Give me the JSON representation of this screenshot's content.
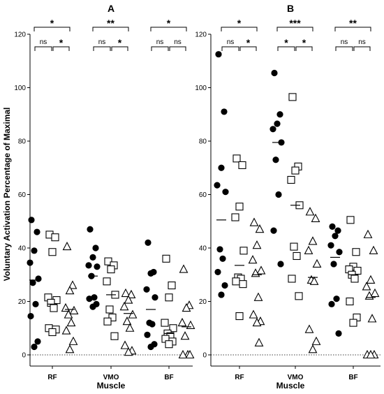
{
  "chart_data": [
    {
      "type": "scatter",
      "title": "A",
      "xlabel": "Muscle",
      "ylabel": "Voluntary Activation Percentage of Maximal",
      "ylim": [
        0,
        120
      ],
      "yticks": [
        "0",
        "20",
        "40",
        "60",
        "80",
        "100",
        "120"
      ],
      "categories": [
        "RF",
        "VMO",
        "BF"
      ],
      "reference_line": 0,
      "groups": [
        {
          "category": "RF",
          "series": [
            {
              "marker": "circle",
              "values": [
                50.5,
                46,
                39,
                34.5,
                28.5,
                27,
                19,
                14.5,
                5,
                3
              ],
              "mean": 28
            },
            {
              "marker": "square",
              "values": [
                45,
                44,
                38.5,
                21.5,
                20.5,
                19.5,
                17.5,
                10,
                9.5,
                8.5
              ],
              "mean": 19
            },
            {
              "marker": "triangle",
              "values": [
                40.5,
                26,
                24,
                17.5,
                16.5,
                15,
                12,
                9,
                5,
                2
              ],
              "mean": 17
            }
          ],
          "comparisons": [
            {
              "pair": "circle-triangle",
              "label": "*"
            },
            {
              "pair": "circle-square",
              "label": "ns"
            },
            {
              "pair": "square-triangle",
              "label": "*"
            }
          ]
        },
        {
          "category": "VMO",
          "series": [
            {
              "marker": "circle",
              "values": [
                47,
                40,
                36.5,
                33.5,
                33,
                29.5,
                21.5,
                21,
                19,
                18
              ],
              "mean": 29.5
            },
            {
              "marker": "square",
              "values": [
                35,
                33.5,
                32,
                27.5,
                22.5,
                17,
                14,
                12.5,
                7
              ],
              "mean": 22.5
            },
            {
              "marker": "triangle",
              "values": [
                23,
                22.5,
                20.5,
                18,
                15,
                12.5,
                10,
                3.5,
                1.5,
                1
              ],
              "mean": 15.5
            }
          ],
          "comparisons": [
            {
              "pair": "circle-triangle",
              "label": "**"
            },
            {
              "pair": "circle-square",
              "label": "ns"
            },
            {
              "pair": "square-triangle",
              "label": "*"
            }
          ]
        },
        {
          "category": "BF",
          "series": [
            {
              "marker": "circle",
              "values": [
                42,
                31,
                30.5,
                24.5,
                21.5,
                12,
                11.5,
                7.5,
                4,
                3
              ],
              "mean": 17
            },
            {
              "marker": "square",
              "values": [
                36,
                26,
                21.5,
                12,
                10,
                8,
                7,
                6,
                5,
                4
              ],
              "mean": 8
            },
            {
              "marker": "triangle",
              "values": [
                32,
                18.5,
                17.5,
                12,
                11,
                7,
                0,
                0,
                0
              ],
              "mean": 10.5
            }
          ],
          "comparisons": [
            {
              "pair": "circle-triangle",
              "label": "*"
            },
            {
              "pair": "circle-square",
              "label": "ns"
            },
            {
              "pair": "square-triangle",
              "label": "ns"
            }
          ]
        }
      ]
    },
    {
      "type": "scatter",
      "title": "B",
      "xlabel": "Muscle",
      "ylabel": "",
      "ylim": [
        0,
        120
      ],
      "yticks": [
        "0",
        "20",
        "40",
        "60",
        "80",
        "100",
        "120"
      ],
      "categories": [
        "RF",
        "VMO",
        "BF"
      ],
      "reference_line": 0,
      "groups": [
        {
          "category": "RF",
          "series": [
            {
              "marker": "circle",
              "values": [
                112.5,
                91,
                70,
                63.5,
                61,
                39.5,
                36,
                31,
                26,
                22.5
              ],
              "mean": 50.5
            },
            {
              "marker": "square",
              "values": [
                73.5,
                71,
                55.5,
                51.5,
                39,
                29,
                28.5,
                27.5,
                26.5,
                14.5
              ],
              "mean": 33.5
            },
            {
              "marker": "triangle",
              "values": [
                49.5,
                47,
                41,
                35.5,
                31.5,
                30.5,
                21.5,
                15,
                12.5,
                12,
                4.5
              ],
              "mean": 30
            }
          ],
          "comparisons": [
            {
              "pair": "circle-triangle",
              "label": "*"
            },
            {
              "pair": "circle-square",
              "label": "ns"
            },
            {
              "pair": "square-triangle",
              "label": "*"
            }
          ]
        },
        {
          "category": "VMO",
          "series": [
            {
              "marker": "circle",
              "values": [
                105.5,
                90,
                86.5,
                84.5,
                79.5,
                73,
                60,
                46.5,
                34
              ],
              "mean": 79.5
            },
            {
              "marker": "square",
              "values": [
                96.5,
                70.5,
                69,
                65.5,
                56,
                40.5,
                37,
                28.5,
                22
              ],
              "mean": 56
            },
            {
              "marker": "triangle",
              "values": [
                53.5,
                51,
                42.5,
                39,
                34,
                28,
                27.5,
                9.5,
                5,
                2
              ],
              "mean": 29
            }
          ],
          "comparisons": [
            {
              "pair": "circle-triangle",
              "label": "***"
            },
            {
              "pair": "circle-square",
              "label": "*"
            },
            {
              "pair": "square-triangle",
              "label": "*"
            }
          ]
        },
        {
          "category": "BF",
          "series": [
            {
              "marker": "circle",
              "values": [
                48,
                46.5,
                44.5,
                41,
                38.5,
                34,
                21,
                19,
                8
              ],
              "mean": 36.5
            },
            {
              "marker": "square",
              "values": [
                50.5,
                38.5,
                33,
                32,
                31.5,
                30,
                28.5,
                20,
                14,
                12
              ],
              "mean": 30
            },
            {
              "marker": "triangle",
              "values": [
                45,
                39,
                28,
                25.5,
                23,
                22,
                13.5,
                0,
                0,
                0
              ],
              "mean": 21.5
            }
          ],
          "comparisons": [
            {
              "pair": "circle-triangle",
              "label": "**"
            },
            {
              "pair": "circle-square",
              "label": "ns"
            },
            {
              "pair": "square-triangle",
              "label": "ns"
            }
          ]
        }
      ]
    }
  ]
}
